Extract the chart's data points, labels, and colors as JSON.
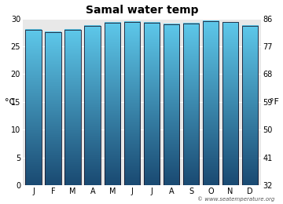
{
  "title": "Samal water temp",
  "months": [
    "J",
    "F",
    "M",
    "A",
    "M",
    "J",
    "J",
    "A",
    "S",
    "O",
    "N",
    "D"
  ],
  "values_c": [
    28.0,
    27.6,
    28.0,
    28.7,
    29.2,
    29.4,
    29.2,
    28.9,
    29.1,
    29.5,
    29.3,
    28.6
  ],
  "ylim_c": [
    0,
    30
  ],
  "yticks_c": [
    0,
    5,
    10,
    15,
    20,
    25,
    30
  ],
  "yticks_f": [
    32,
    41,
    50,
    59,
    68,
    77,
    86
  ],
  "ylabel_left": "°C",
  "ylabel_right": "°F",
  "bar_color_top": "#5ec8ea",
  "bar_color_bottom": "#1a4a72",
  "bar_edge_color": "#1a1a2e",
  "background_color": "#ffffff",
  "plot_bg_color": "#e8e8e8",
  "grid_color": "#ffffff",
  "title_fontsize": 10,
  "tick_fontsize": 7,
  "label_fontsize": 8,
  "watermark": "© www.seatemperature.org"
}
